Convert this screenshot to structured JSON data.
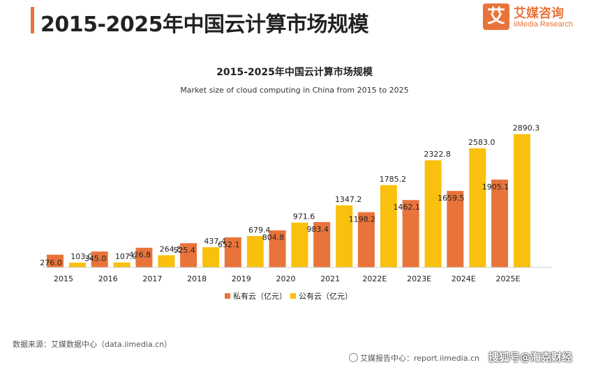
{
  "header": {
    "title": "2015-2025年中国云计算市场规模"
  },
  "logo": {
    "mark": "艾",
    "name_cn": "艾媒咨询",
    "name_en": "iiMedia Research"
  },
  "colors": {
    "accent": "#e8743b",
    "private": "#e8743b",
    "public": "#f9c00d"
  },
  "chart_data": {
    "type": "bar",
    "title": "2015-2025年中国云计算市场规模",
    "subtitle": "Market size of cloud computing in China from 2015 to 2025",
    "categories": [
      "2015",
      "2016",
      "2017",
      "2018",
      "2019",
      "2020",
      "2021",
      "2022E",
      "2023E",
      "2024E",
      "2025E"
    ],
    "series": [
      {
        "name": "私有云（亿元）",
        "color": "#e8743b",
        "values": [
          276.0,
          345.0,
          426.8,
          525.4,
          652.1,
          804.8,
          983.4,
          1198.2,
          1462.1,
          1659.5,
          1905.1
        ]
      },
      {
        "name": "公有云（亿元）",
        "color": "#f9c00d",
        "values": [
          103.0,
          107.0,
          264.8,
          437.4,
          679.4,
          971.6,
          1347.2,
          1785.2,
          2322.8,
          2583.0,
          2890.3
        ]
      }
    ],
    "xlabel": "",
    "ylabel": "",
    "ylim": [
      0,
      2900
    ],
    "grid": false,
    "legend": "bottom-center"
  },
  "footer": {
    "source": "数据来源：艾媒数据中心（data.iimedia.cn）",
    "report": "艾媒报告中心：report.iimedia.cn",
    "watermark": "搜狐号@海克财经"
  }
}
